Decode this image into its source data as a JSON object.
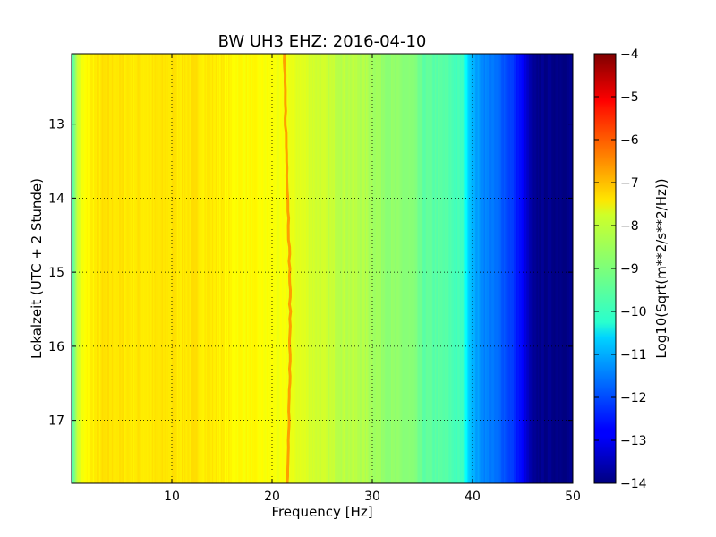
{
  "chart_data": {
    "type": "heatmap",
    "title": "BW UH3 EHZ: 2016-04-10",
    "xlabel": "Frequency [Hz]",
    "ylabel": "Lokalzeit (UTC + 2 Stunde)",
    "xlim": [
      0,
      50
    ],
    "ylim": [
      17.85,
      12.05
    ],
    "y_inverted": true,
    "grid": true,
    "x_ticks": [
      10,
      20,
      30,
      40,
      50
    ],
    "x_tick_labels": [
      "10",
      "20",
      "30",
      "40",
      "50"
    ],
    "y_ticks": [
      13,
      14,
      15,
      16,
      17
    ],
    "y_tick_labels": [
      "13",
      "14",
      "15",
      "16",
      "17"
    ],
    "colormap": "jet",
    "colorbar": {
      "label": "Log10(Sqrt(m**2/s**2/Hz))",
      "range": [
        -14,
        -4
      ],
      "ticks": [
        -4,
        -5,
        -6,
        -7,
        -8,
        -9,
        -10,
        -11,
        -12,
        -13,
        -14
      ],
      "tick_labels": [
        "−4",
        "−5",
        "−6",
        "−7",
        "−8",
        "−9",
        "−10",
        "−11",
        "−12",
        "−13",
        "−14"
      ]
    },
    "frequency_profile": {
      "freq_hz": [
        0,
        0.5,
        1,
        2,
        3,
        5,
        8,
        10,
        12,
        14,
        15,
        16,
        18,
        19,
        20,
        21,
        21.5,
        22,
        23,
        24,
        25,
        27,
        29,
        30,
        31,
        32,
        34,
        35,
        37,
        38,
        39,
        39.5,
        40,
        41,
        42,
        43,
        44,
        45,
        46,
        48,
        50
      ],
      "log_amplitude": [
        -9.8,
        -8.4,
        -7.9,
        -7.6,
        -7.5,
        -7.5,
        -7.55,
        -7.5,
        -7.5,
        -7.55,
        -7.6,
        -7.7,
        -7.75,
        -7.8,
        -7.8,
        -7.9,
        -7.85,
        -8.0,
        -8.05,
        -8.15,
        -8.25,
        -8.4,
        -8.5,
        -8.6,
        -8.75,
        -8.85,
        -8.95,
        -9.3,
        -9.4,
        -9.5,
        -9.65,
        -10.5,
        -11.0,
        -11.4,
        -11.6,
        -11.85,
        -12.2,
        -12.8,
        -13.85,
        -13.9,
        -13.9
      ]
    },
    "spectral_line": {
      "freq_start_hz": 21.2,
      "freq_end_hz": 21.8,
      "log_amplitude": -6.8
    },
    "time_range": [
      12.05,
      17.85
    ]
  }
}
